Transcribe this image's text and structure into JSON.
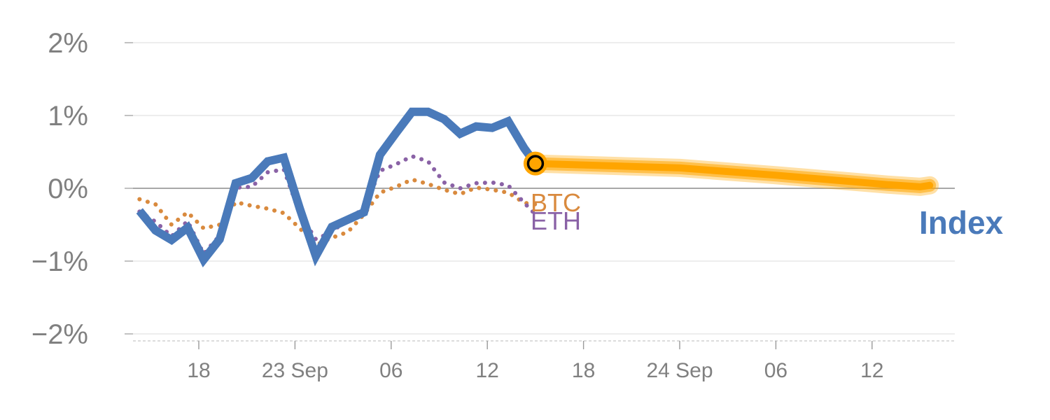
{
  "chart_data": {
    "type": "line",
    "title": "",
    "xlabel": "",
    "ylabel": "",
    "ylim": [
      -2,
      2
    ],
    "y_ticks": [
      {
        "value": 2,
        "label": "2%"
      },
      {
        "value": 1,
        "label": "1%"
      },
      {
        "value": 0,
        "label": "0%"
      },
      {
        "value": -1,
        "label": "−1%"
      },
      {
        "value": -2,
        "label": "−2%"
      }
    ],
    "x_ticks": [
      {
        "index": 3,
        "label": "18"
      },
      {
        "index": 9,
        "label": "23 Sep"
      },
      {
        "index": 15,
        "label": "06"
      },
      {
        "index": 21,
        "label": "12"
      },
      {
        "index": 27,
        "label": "18"
      },
      {
        "index": 33,
        "label": "24 Sep"
      },
      {
        "index": 39,
        "label": "06"
      },
      {
        "index": 45,
        "label": "12"
      }
    ],
    "grid": true,
    "series": [
      {
        "name": "Index",
        "color": "#4a7aba",
        "style": "solid",
        "x": [
          -0.7,
          0.3,
          1.3,
          2.3,
          3.3,
          4.3,
          5.3,
          6.3,
          7.3,
          8.3,
          9.3,
          10.3,
          11.3,
          12.3,
          13.3,
          14.3,
          15.3,
          16.3,
          17.3,
          18.3,
          19.3,
          20.3,
          21.3,
          22.3,
          23.3,
          24.0
        ],
        "values": [
          -0.31,
          -0.58,
          -0.71,
          -0.54,
          -0.98,
          -0.7,
          0.07,
          0.14,
          0.37,
          0.42,
          -0.28,
          -0.93,
          -0.53,
          -0.43,
          -0.33,
          0.46,
          0.76,
          1.05,
          1.05,
          0.95,
          0.75,
          0.85,
          0.83,
          0.92,
          0.55,
          0.34
        ]
      },
      {
        "name": "BTC",
        "color": "#d98a3e",
        "style": "dotted",
        "x": [
          -0.7,
          0.3,
          1.3,
          2.3,
          3.3,
          4.3,
          5.3,
          6.3,
          7.3,
          8.3,
          9.3,
          10.3,
          11.3,
          12.3,
          13.3,
          14.3,
          15.3,
          16.3,
          17.3,
          18.3,
          19.3,
          20.3,
          21.3,
          22.3,
          23.3,
          24.0
        ],
        "values": [
          -0.15,
          -0.22,
          -0.5,
          -0.33,
          -0.55,
          -0.5,
          -0.19,
          -0.24,
          -0.28,
          -0.34,
          -0.55,
          -0.78,
          -0.68,
          -0.6,
          -0.36,
          -0.06,
          0.02,
          0.12,
          0.06,
          -0.02,
          -0.08,
          0.01,
          -0.02,
          -0.06,
          -0.2,
          -0.22
        ]
      },
      {
        "name": "ETH",
        "color": "#8a62a6",
        "style": "dotted",
        "x": [
          -0.7,
          0.3,
          1.3,
          2.3,
          3.3,
          4.3,
          5.3,
          6.3,
          7.3,
          8.3,
          9.3,
          10.3,
          11.3,
          12.3,
          13.3,
          14.3,
          15.3,
          16.3,
          17.3,
          18.3,
          19.3,
          20.3,
          21.3,
          22.3,
          23.3,
          24.0
        ],
        "values": [
          -0.32,
          -0.46,
          -0.66,
          -0.45,
          -0.9,
          -0.65,
          0.01,
          0.02,
          0.22,
          0.26,
          -0.35,
          -0.7,
          -0.6,
          -0.42,
          -0.28,
          0.24,
          0.33,
          0.44,
          0.37,
          0.08,
          0.0,
          0.07,
          0.08,
          0.04,
          -0.2,
          -0.36
        ]
      },
      {
        "name": "Index forecast",
        "color": "#ffa500",
        "style": "band",
        "x": [
          24.0,
          33.0,
          39.0,
          46.0,
          48.0,
          48.6
        ],
        "values": [
          0.34,
          0.28,
          0.18,
          0.05,
          0.02,
          0.04
        ]
      }
    ],
    "labels": {
      "btc": "BTC",
      "eth": "ETH",
      "index": "Index"
    }
  }
}
